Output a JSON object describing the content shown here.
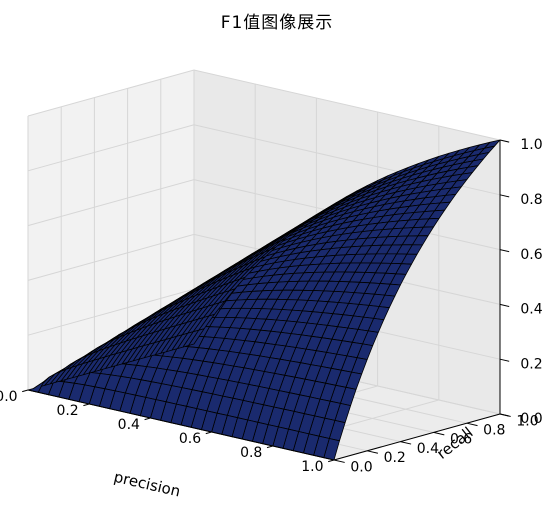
{
  "chart_data": {
    "type": "surface",
    "title": "F1值图像展示",
    "xlabel": "precision",
    "ylabel": "recall",
    "zlabel": "",
    "function": "F1 = 2*precision*recall/(precision+recall)",
    "xlim": [
      0.0,
      1.0
    ],
    "ylim": [
      0.0,
      1.0
    ],
    "zlim": [
      0.0,
      1.0
    ],
    "x_ticks": [
      "0.0",
      "0.2",
      "0.4",
      "0.6",
      "0.8",
      "1.0"
    ],
    "y_ticks": [
      "0.0",
      "0.2",
      "0.4",
      "0.6",
      "0.8",
      "1.0"
    ],
    "z_ticks": [
      "0.0",
      "0.2",
      "0.4",
      "0.6",
      "0.8",
      "1.0"
    ],
    "grid": true,
    "surface_color": "#1a2a6e",
    "edge_color": "#000000",
    "pane_color": "#f2f2f2",
    "grid_color": "#d6d6d6"
  }
}
